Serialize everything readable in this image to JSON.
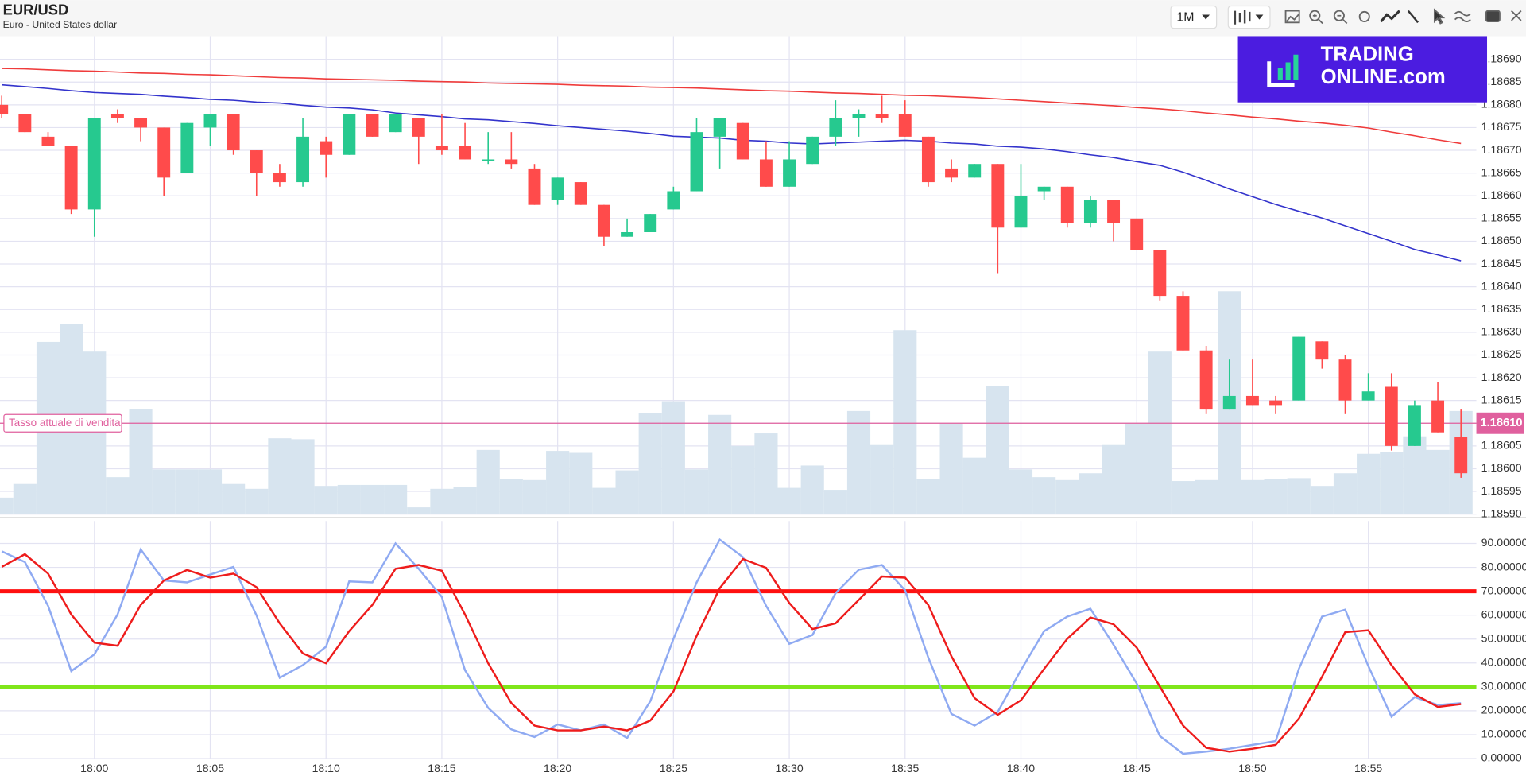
{
  "header": {
    "title": "EUR/USD",
    "subtitle": "Euro - United States dollar",
    "interval": "1M"
  },
  "logo": {
    "line1": "TRADING",
    "line2": "ONLINE.com"
  },
  "chart_data": [
    {
      "type": "candlestick",
      "categories": [
        null,
        null,
        null,
        null,
        "18:00",
        null,
        null,
        null,
        null,
        "18:05",
        null,
        null,
        null,
        null,
        "18:10",
        null,
        null,
        null,
        null,
        "18:15",
        null,
        null,
        null,
        null,
        "18:20",
        null,
        null,
        null,
        null,
        "18:25",
        null,
        null,
        null,
        null,
        "18:30",
        null,
        null,
        null,
        null,
        "18:35",
        null,
        null,
        null,
        null,
        "18:40",
        null,
        null,
        null,
        null,
        "18:45",
        null,
        null,
        null,
        null,
        "18:50",
        null,
        null,
        null,
        null,
        "18:55",
        null,
        null,
        null,
        null
      ],
      "ohlc": [
        [
          1.1868,
          1.18682,
          1.18677,
          1.18678
        ],
        [
          1.18678,
          1.18678,
          1.18674,
          1.18674
        ],
        [
          1.18673,
          1.18674,
          1.18671,
          1.18671
        ],
        [
          1.18671,
          1.18671,
          1.18656,
          1.18657
        ],
        [
          1.18657,
          1.18677,
          1.18651,
          1.18677
        ],
        [
          1.18678,
          1.18679,
          1.18676,
          1.18677
        ],
        [
          1.18677,
          1.18677,
          1.18672,
          1.18675
        ],
        [
          1.18675,
          1.18675,
          1.1866,
          1.18664
        ],
        [
          1.18665,
          1.18676,
          1.18665,
          1.18676
        ],
        [
          1.18675,
          1.18678,
          1.18671,
          1.18678
        ],
        [
          1.18678,
          1.18678,
          1.18669,
          1.1867
        ],
        [
          1.1867,
          1.1867,
          1.1866,
          1.18665
        ],
        [
          1.18665,
          1.18667,
          1.18662,
          1.18663
        ],
        [
          1.18663,
          1.18677,
          1.18662,
          1.18673
        ],
        [
          1.18672,
          1.18673,
          1.18664,
          1.18669
        ],
        [
          1.18669,
          1.18678,
          1.18669,
          1.18678
        ],
        [
          1.18678,
          1.18678,
          1.18673,
          1.18673
        ],
        [
          1.18674,
          1.18678,
          1.18674,
          1.18678
        ],
        [
          1.18677,
          1.18677,
          1.18667,
          1.18673
        ],
        [
          1.18671,
          1.18678,
          1.18669,
          1.1867
        ],
        [
          1.18671,
          1.18676,
          1.18668,
          1.18668
        ],
        [
          1.18668,
          1.18674,
          1.18667,
          1.18668
        ],
        [
          1.18668,
          1.18674,
          1.18666,
          1.18667
        ],
        [
          1.18666,
          1.18667,
          1.18658,
          1.18658
        ],
        [
          1.18659,
          1.18664,
          1.18658,
          1.18664
        ],
        [
          1.18663,
          1.18663,
          1.18658,
          1.18658
        ],
        [
          1.18658,
          1.18658,
          1.18649,
          1.18651
        ],
        [
          1.18651,
          1.18655,
          1.18651,
          1.18652
        ],
        [
          1.18652,
          1.18656,
          1.18652,
          1.18656
        ],
        [
          1.18657,
          1.18662,
          1.18657,
          1.18661
        ],
        [
          1.18661,
          1.18677,
          1.18661,
          1.18674
        ],
        [
          1.18673,
          1.18677,
          1.18666,
          1.18677
        ],
        [
          1.18676,
          1.18676,
          1.18668,
          1.18668
        ],
        [
          1.18668,
          1.18672,
          1.18662,
          1.18662
        ],
        [
          1.18662,
          1.18672,
          1.18662,
          1.18668
        ],
        [
          1.18667,
          1.18673,
          1.18667,
          1.18673
        ],
        [
          1.18673,
          1.18681,
          1.18671,
          1.18677
        ],
        [
          1.18677,
          1.18679,
          1.18673,
          1.18678
        ],
        [
          1.18678,
          1.18682,
          1.18676,
          1.18677
        ],
        [
          1.18678,
          1.18681,
          1.18673,
          1.18673
        ],
        [
          1.18673,
          1.18673,
          1.18662,
          1.18663
        ],
        [
          1.18666,
          1.18668,
          1.18663,
          1.18664
        ],
        [
          1.18664,
          1.18667,
          1.18664,
          1.18667
        ],
        [
          1.18667,
          1.18667,
          1.18643,
          1.18653
        ],
        [
          1.18653,
          1.18667,
          1.18653,
          1.1866
        ],
        [
          1.18661,
          1.18662,
          1.18659,
          1.18662
        ],
        [
          1.18662,
          1.18662,
          1.18653,
          1.18654
        ],
        [
          1.18654,
          1.1866,
          1.18653,
          1.18659
        ],
        [
          1.18659,
          1.18659,
          1.1865,
          1.18654
        ],
        [
          1.18655,
          1.18655,
          1.18648,
          1.18648
        ],
        [
          1.18648,
          1.18648,
          1.18637,
          1.18638
        ],
        [
          1.18638,
          1.18639,
          1.18626,
          1.18626
        ],
        [
          1.18626,
          1.18627,
          1.18612,
          1.18613
        ],
        [
          1.18613,
          1.18624,
          1.18613,
          1.18616
        ],
        [
          1.18616,
          1.18624,
          1.18614,
          1.18614
        ],
        [
          1.18615,
          1.18616,
          1.18612,
          1.18614
        ],
        [
          1.18615,
          1.18629,
          1.18615,
          1.18629
        ],
        [
          1.18628,
          1.18628,
          1.18622,
          1.18624
        ],
        [
          1.18624,
          1.18625,
          1.18612,
          1.18615
        ],
        [
          1.18615,
          1.18621,
          1.18615,
          1.18617
        ],
        [
          1.18618,
          1.18621,
          1.18604,
          1.18605
        ],
        [
          1.18605,
          1.18615,
          1.18605,
          1.18614
        ],
        [
          1.18615,
          1.18619,
          1.18608,
          1.18608
        ],
        [
          1.18607,
          1.18613,
          1.18598,
          1.18599
        ]
      ],
      "volume": [
        17,
        31,
        177,
        195,
        167,
        38,
        108,
        46,
        46,
        46,
        31,
        26,
        78,
        77,
        29,
        30,
        30,
        30,
        7,
        26,
        28,
        66,
        36,
        35,
        65,
        63,
        27,
        45,
        104,
        116,
        46,
        102,
        70,
        83,
        27,
        50,
        25,
        106,
        71,
        189,
        36,
        93,
        58,
        132,
        46,
        38,
        35,
        42,
        71,
        93,
        167,
        34,
        35,
        229,
        35,
        36,
        37,
        29,
        42,
        62,
        64,
        80,
        66,
        106
      ],
      "series": [
        {
          "color": "#ef3b3b",
          "values": [
            1.18688,
            1.186879,
            1.186877,
            1.186875,
            1.186874,
            1.186872,
            1.18687,
            1.186869,
            1.186867,
            1.186866,
            1.186864,
            1.186862,
            1.18686,
            1.186859,
            1.186857,
            1.186856,
            1.186855,
            1.186854,
            1.186852,
            1.186851,
            1.18685,
            1.186848,
            1.186847,
            1.186846,
            1.186845,
            1.186843,
            1.186842,
            1.186841,
            1.186839,
            1.186838,
            1.186837,
            1.186835,
            1.186833,
            1.186831,
            1.18683,
            1.186828,
            1.186826,
            1.186825,
            1.186823,
            1.186821,
            1.18682,
            1.186818,
            1.186816,
            1.186813,
            1.18681,
            1.186807,
            1.186804,
            1.186801,
            1.186798,
            1.186794,
            1.186791,
            1.186787,
            1.186782,
            1.186778,
            1.186773,
            1.186769,
            1.186764,
            1.18676,
            1.186755,
            1.186749,
            1.18674,
            1.186732,
            1.186723,
            1.186715
          ]
        },
        {
          "color": "#3333cc",
          "values": [
            1.186844,
            1.18684,
            1.186836,
            1.186831,
            1.186827,
            1.186825,
            1.186823,
            1.186819,
            1.186816,
            1.186812,
            1.18681,
            1.186806,
            1.186804,
            1.186799,
            1.186795,
            1.186793,
            1.186789,
            1.186782,
            1.186778,
            1.186774,
            1.186769,
            1.186767,
            1.186763,
            1.186759,
            1.186754,
            1.18675,
            1.186746,
            1.186742,
            1.186737,
            1.186731,
            1.186729,
            1.186727,
            1.186722,
            1.18672,
            1.186716,
            1.186714,
            1.186716,
            1.186718,
            1.18672,
            1.186722,
            1.18672,
            1.186716,
            1.186714,
            1.186709,
            1.186707,
            1.186703,
            1.186697,
            1.18669,
            1.186684,
            1.186675,
            1.186667,
            1.186652,
            1.186634,
            1.186615,
            1.186598,
            1.186581,
            1.186566,
            1.186551,
            1.186534,
            1.186517,
            1.1865,
            1.186482,
            1.18647,
            1.186457
          ]
        }
      ],
      "up_color": "#26c98f",
      "down_color": "#ff4b4b",
      "volume_color": "#d7e4ef",
      "current_rate": {
        "label": "Tasso attuale di vendita",
        "value": 1.1861,
        "value_label": "1.18610",
        "color": "#e0609e"
      },
      "ylim": [
        1.1859,
        1.186951
      ],
      "yticks": [
        {
          "value": 1.1869,
          "label": "1.18690"
        },
        1.18685,
        {
          "value": 1.1868,
          "label": "1.18680"
        },
        1.18675,
        {
          "value": 1.1867,
          "label": "1.18670"
        },
        1.18665,
        {
          "value": 1.1866,
          "label": "1.18660"
        },
        1.18655,
        {
          "value": 1.1865,
          "label": "1.18650"
        },
        1.18645,
        {
          "value": 1.1864,
          "label": "1.18640"
        },
        1.18635,
        {
          "value": 1.1863,
          "label": "1.18630"
        },
        1.18625,
        {
          "value": 1.1862,
          "label": "1.18620"
        },
        1.18615,
        {
          "value": 1.1861,
          "label": "1.18610"
        },
        1.18605,
        {
          "value": 1.186,
          "label": "1.18600"
        },
        1.18595,
        {
          "value": 1.1859,
          "label": "1.18590"
        }
      ],
      "grid": true
    },
    {
      "type": "line",
      "series": [
        {
          "color": "#8faaf2",
          "values": [
            86.7,
            82.2,
            63.9,
            36.6,
            43.6,
            60.3,
            87.5,
            74.5,
            73.7,
            77.0,
            80.2,
            59.9,
            33.8,
            39.1,
            46.8,
            74.1,
            73.7,
            90.0,
            79.4,
            67.6,
            37.0,
            21.2,
            12.2,
            9.0,
            14.3,
            11.8,
            14.3,
            8.6,
            24.0,
            50.1,
            73.7,
            91.6,
            84.3,
            63.9,
            48.0,
            51.7,
            69.2,
            79.0,
            81.0,
            70.4,
            42.3,
            18.7,
            13.8,
            19.5,
            37.0,
            53.3,
            59.4,
            62.7,
            47.6,
            31.4,
            9.4,
            2.0,
            2.9,
            4.1,
            5.7,
            7.3,
            37.5,
            59.4,
            62.3,
            38.7,
            17.5,
            25.7,
            22.4,
            23.2
          ]
        },
        {
          "color": "#ee1c1c",
          "values": [
            80.2,
            85.5,
            77.4,
            60.3,
            48.5,
            47.2,
            64.3,
            74.5,
            78.9,
            75.7,
            77.4,
            71.7,
            56.6,
            44.0,
            39.9,
            53.3,
            64.3,
            79.4,
            81.0,
            78.6,
            60.3,
            39.9,
            23.2,
            13.8,
            11.8,
            11.8,
            13.4,
            11.8,
            15.9,
            28.1,
            51.3,
            71.3,
            83.5,
            79.8,
            65.1,
            54.2,
            56.6,
            66.4,
            76.2,
            75.7,
            64.3,
            42.8,
            25.3,
            18.3,
            24.4,
            37.5,
            50.1,
            59.0,
            56.2,
            46.4,
            30.1,
            13.8,
            4.5,
            2.9,
            4.1,
            5.7,
            16.7,
            34.2,
            52.9,
            53.7,
            39.1,
            26.9,
            21.6,
            22.8
          ]
        }
      ],
      "levels": [
        {
          "value": 70,
          "color": "#ff1010"
        },
        {
          "value": 30,
          "color": "#80e61a"
        }
      ],
      "ylim": [
        0,
        99.4
      ],
      "yticks": [
        {
          "value": 0,
          "label": "0.00000"
        },
        {
          "value": 10,
          "label": "10.00000"
        },
        {
          "value": 20,
          "label": "20.00000"
        },
        {
          "value": 30,
          "label": "30.00000"
        },
        {
          "value": 40,
          "label": "40.00000"
        },
        {
          "value": 50,
          "label": "50.00000"
        },
        {
          "value": 60,
          "label": "60.00000"
        },
        {
          "value": 70,
          "label": "70.00000"
        },
        {
          "value": 80,
          "label": "80.00000"
        },
        {
          "value": 90,
          "label": "90.00000"
        }
      ],
      "grid": true
    }
  ]
}
